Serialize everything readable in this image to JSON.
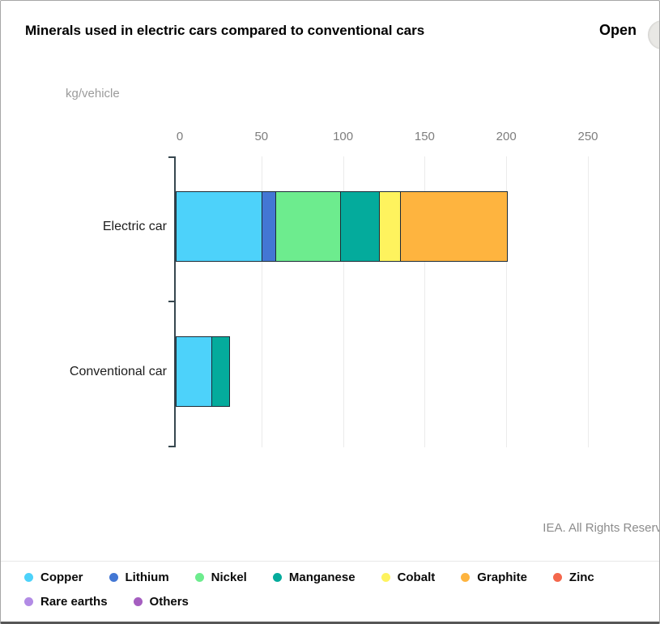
{
  "header": {
    "title": "Minerals used in electric cars compared to conventional cars",
    "open_label": "Open"
  },
  "chart": {
    "unit": "kg/vehicle"
  },
  "footer": {
    "credit": "IEA. All Rights Reserv"
  },
  "chart_data": {
    "type": "bar",
    "orientation": "horizontal",
    "stacked": true,
    "title": "Minerals used in electric cars compared to conventional cars",
    "xlabel": "kg/vehicle",
    "ylabel": "",
    "categories": [
      "Electric car",
      "Conventional car"
    ],
    "x_ticks": [
      0,
      50,
      100,
      150,
      200,
      250
    ],
    "xlim": [
      0,
      293
    ],
    "grid": true,
    "legend_position": "bottom",
    "axis_color": "#37474f",
    "gridline_color": "#ebebeb",
    "segment_border_color": "#1c2b36",
    "totals": [
      206.1,
      33.5
    ],
    "series": [
      {
        "name": "Copper",
        "color": "#4dd2fa",
        "values": [
          53.2,
          22.3
        ]
      },
      {
        "name": "Lithium",
        "color": "#4377d4",
        "values": [
          8.9,
          0
        ]
      },
      {
        "name": "Nickel",
        "color": "#6dec8e",
        "values": [
          39.9,
          0
        ]
      },
      {
        "name": "Manganese",
        "color": "#04ab9c",
        "values": [
          24.5,
          11.2
        ]
      },
      {
        "name": "Cobalt",
        "color": "#fef35e",
        "values": [
          13.3,
          0
        ]
      },
      {
        "name": "Graphite",
        "color": "#feb43f",
        "values": [
          66.3,
          0
        ]
      },
      {
        "name": "Zinc",
        "color": "#f4674c",
        "values": [
          0,
          0
        ]
      },
      {
        "name": "Rare earths",
        "color": "#b28be5",
        "values": [
          0,
          0
        ]
      },
      {
        "name": "Others",
        "color": "#a55ec0",
        "values": [
          0,
          0
        ]
      }
    ]
  }
}
